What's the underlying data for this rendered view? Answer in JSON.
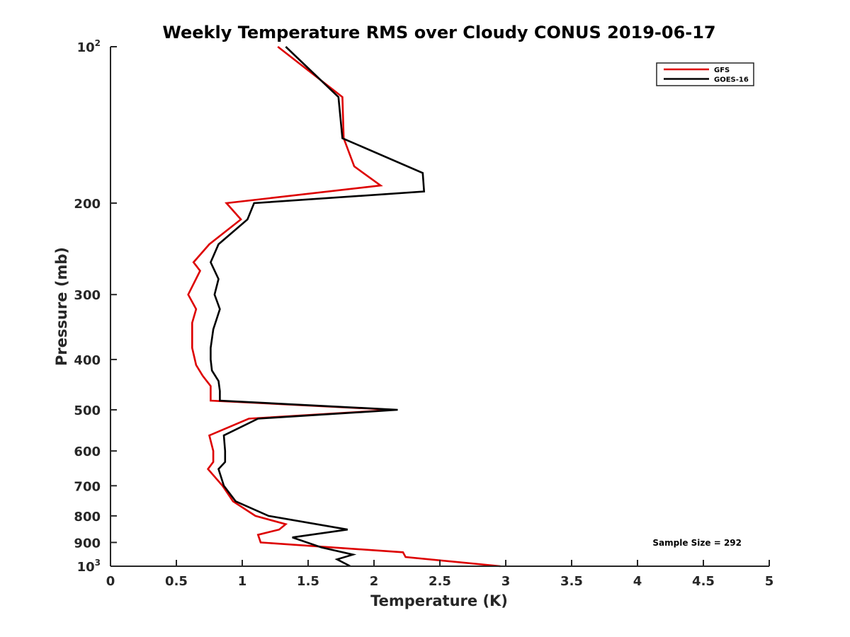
{
  "chart_data": {
    "type": "line",
    "title": "Weekly Temperature RMS over Cloudy CONUS 2019-06-17",
    "xlabel": "Temperature (K)",
    "ylabel": "Pressure (mb)",
    "xlim": [
      0,
      5
    ],
    "ylim": [
      100,
      1000
    ],
    "yscale": "log",
    "y_reversed": true,
    "x_ticks": [
      0,
      0.5,
      1,
      1.5,
      2,
      2.5,
      3,
      3.5,
      4,
      4.5,
      5
    ],
    "x_tick_labels": [
      "0",
      "0.5",
      "1",
      "1.5",
      "2",
      "2.5",
      "3",
      "3.5",
      "4",
      "4.5",
      "5"
    ],
    "y_ticks": [
      {
        "value": 100,
        "base": "10",
        "exp": "2",
        "label": ""
      },
      {
        "value": 200,
        "base": "",
        "exp": "",
        "label": "200"
      },
      {
        "value": 300,
        "base": "",
        "exp": "",
        "label": "300"
      },
      {
        "value": 400,
        "base": "",
        "exp": "",
        "label": "400"
      },
      {
        "value": 500,
        "base": "",
        "exp": "",
        "label": "500"
      },
      {
        "value": 600,
        "base": "",
        "exp": "",
        "label": "600"
      },
      {
        "value": 700,
        "base": "",
        "exp": "",
        "label": "700"
      },
      {
        "value": 800,
        "base": "",
        "exp": "",
        "label": "800"
      },
      {
        "value": 900,
        "base": "",
        "exp": "",
        "label": "900"
      },
      {
        "value": 1000,
        "base": "10",
        "exp": "3",
        "label": ""
      }
    ],
    "legend_position": "top-right",
    "grid": false,
    "annotation": "Sample Size = 292",
    "series": [
      {
        "name": "GFS",
        "color": "#dd0000",
        "points": [
          [
            1.27,
            100
          ],
          [
            1.76,
            125
          ],
          [
            1.77,
            150
          ],
          [
            1.85,
            170
          ],
          [
            2.05,
            185
          ],
          [
            0.88,
            200
          ],
          [
            0.99,
            215
          ],
          [
            0.75,
            240
          ],
          [
            0.63,
            260
          ],
          [
            0.68,
            270
          ],
          [
            0.59,
            300
          ],
          [
            0.65,
            320
          ],
          [
            0.62,
            340
          ],
          [
            0.62,
            380
          ],
          [
            0.65,
            410
          ],
          [
            0.7,
            430
          ],
          [
            0.76,
            450
          ],
          [
            0.76,
            470
          ],
          [
            0.76,
            480
          ],
          [
            2.15,
            500
          ],
          [
            1.05,
            520
          ],
          [
            0.75,
            560
          ],
          [
            0.78,
            600
          ],
          [
            0.78,
            630
          ],
          [
            0.74,
            650
          ],
          [
            0.85,
            700
          ],
          [
            0.93,
            750
          ],
          [
            1.1,
            800
          ],
          [
            1.33,
            830
          ],
          [
            1.28,
            850
          ],
          [
            1.12,
            870
          ],
          [
            1.14,
            900
          ],
          [
            2.22,
            940
          ],
          [
            2.24,
            960
          ],
          [
            2.96,
            1000
          ]
        ]
      },
      {
        "name": "GOES-16",
        "color": "#000000",
        "points": [
          [
            1.33,
            100
          ],
          [
            1.73,
            125
          ],
          [
            1.76,
            150
          ],
          [
            2.37,
            175
          ],
          [
            2.38,
            190
          ],
          [
            1.09,
            200
          ],
          [
            1.04,
            215
          ],
          [
            0.82,
            240
          ],
          [
            0.76,
            260
          ],
          [
            0.82,
            280
          ],
          [
            0.79,
            300
          ],
          [
            0.83,
            320
          ],
          [
            0.78,
            350
          ],
          [
            0.76,
            380
          ],
          [
            0.76,
            400
          ],
          [
            0.77,
            420
          ],
          [
            0.82,
            440
          ],
          [
            0.83,
            460
          ],
          [
            0.83,
            480
          ],
          [
            2.18,
            500
          ],
          [
            1.12,
            520
          ],
          [
            0.86,
            560
          ],
          [
            0.87,
            600
          ],
          [
            0.87,
            630
          ],
          [
            0.82,
            650
          ],
          [
            0.86,
            700
          ],
          [
            0.95,
            750
          ],
          [
            1.2,
            800
          ],
          [
            1.8,
            850
          ],
          [
            1.38,
            880
          ],
          [
            1.6,
            920
          ],
          [
            1.84,
            950
          ],
          [
            1.72,
            970
          ],
          [
            1.82,
            1000
          ]
        ]
      }
    ]
  }
}
